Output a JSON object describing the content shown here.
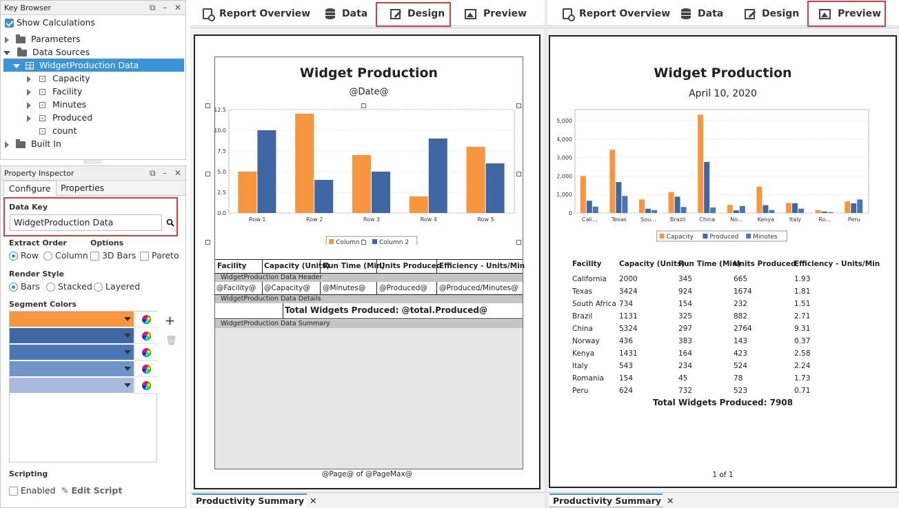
{
  "key_browser": {
    "title": "Key Browser",
    "show_calculations": "Show Calculations",
    "tree": {
      "parameters": "Parameters",
      "data_sources": "Data Sources",
      "widget_data": "WidgetProduction Data",
      "fields": [
        "Capacity",
        "Facility",
        "Minutes",
        "Produced",
        "count"
      ],
      "built_in": "Built In"
    }
  },
  "property_inspector": {
    "title": "Property Inspector",
    "tabs": [
      "Configure",
      "Properties"
    ],
    "data_key_label": "Data Key",
    "data_key_value": "WidgetProduction Data",
    "extract_order_label": "Extract Order",
    "options_label": "Options",
    "extract_row": "Row",
    "extract_column": "Column",
    "opt_3d": "3D Bars",
    "opt_pareto": "Pareto",
    "render_style_label": "Render Style",
    "render_bars": "Bars",
    "render_stacked": "Stacked",
    "render_layered": "Layered",
    "segment_colors_label": "Segment Colors",
    "segment_colors": [
      "#f7963f",
      "#3f67a3",
      "#4a76b5",
      "#7094c8",
      "#a8bbdc"
    ],
    "scripting_label": "Scripting",
    "enabled": "Enabled",
    "edit_script": "Edit Script"
  },
  "left_tabs": {
    "report_overview": "Report Overview",
    "data": "Data",
    "design": "Design",
    "preview": "Preview",
    "bottom_tab": "Productivity Summary"
  },
  "right_tabs": {
    "report_overview": "Report Overview",
    "data": "Data",
    "design": "Design",
    "preview": "Preview",
    "bottom_tab": "Productivity Summary"
  },
  "design": {
    "title": "Widget Production",
    "date_key": "@Date@",
    "columns": [
      "Facility",
      "Capacity (Units)",
      "Run Time (Min)",
      "Units Produced",
      "Efficiency - Units/Min"
    ],
    "header_band": "WidgetProduction Data Header",
    "detail_keys": [
      "@Facility@",
      "@Capacity@",
      "@Minutes@",
      "@Produced@",
      "@Produced/Minutes@"
    ],
    "details_band": "WidgetProduction Data Details",
    "total": "Total Widgets Produced: @total.Produced@",
    "summary_band": "WidgetProduction Data Summary",
    "footer": "@Page@ of @PageMax@"
  },
  "preview": {
    "title": "Widget Production",
    "date": "April 10, 2020",
    "columns": [
      "Facility",
      "Capacity (Units)",
      "Run Time (Min)",
      "Units Produced",
      "Efficiency - Units/Min"
    ],
    "rows": [
      [
        "California",
        "2000",
        "345",
        "665",
        "1.93"
      ],
      [
        "Texas",
        "3424",
        "924",
        "1674",
        "1.81"
      ],
      [
        "South Africa",
        "734",
        "154",
        "232",
        "1.51"
      ],
      [
        "Brazil",
        "1131",
        "325",
        "882",
        "2.71"
      ],
      [
        "China",
        "5324",
        "297",
        "2764",
        "9.31"
      ],
      [
        "Norway",
        "436",
        "383",
        "143",
        "0.37"
      ],
      [
        "Kenya",
        "1431",
        "164",
        "423",
        "2.58"
      ],
      [
        "Italy",
        "543",
        "234",
        "524",
        "2.24"
      ],
      [
        "Romania",
        "154",
        "45",
        "78",
        "1.73"
      ],
      [
        "Peru",
        "624",
        "732",
        "523",
        "0.71"
      ]
    ],
    "total": "Total Widgets Produced: 7908",
    "footer": "1 of 1"
  },
  "chart_data": [
    {
      "type": "bar",
      "categories": [
        "Row 1",
        "Row 2",
        "Row 3",
        "Row 4",
        "Row 5"
      ],
      "series": [
        {
          "name": "Column 1",
          "values": [
            5,
            12,
            7,
            2,
            8
          ],
          "color": "#f7963f"
        },
        {
          "name": "Column 2",
          "values": [
            10,
            4,
            5,
            9,
            6
          ],
          "color": "#3f67a3"
        }
      ],
      "yticks": [
        "0.0",
        "2.5",
        "5.0",
        "7.5",
        "10.0",
        "12.5"
      ],
      "ylim": [
        0,
        12.5
      ],
      "legend": "bottom",
      "grid": true
    },
    {
      "type": "bar",
      "categories": [
        "Cali...",
        "Texas",
        "Sou...",
        "Brazil",
        "China",
        "No...",
        "Kenya",
        "Italy",
        "Ro...",
        "Peru"
      ],
      "series": [
        {
          "name": "Capacity",
          "values": [
            2000,
            3424,
            734,
            1131,
            5324,
            436,
            1431,
            543,
            154,
            624
          ],
          "color": "#f7963f"
        },
        {
          "name": "Produced",
          "values": [
            665,
            1674,
            232,
            882,
            2764,
            143,
            423,
            524,
            78,
            523
          ],
          "color": "#3f67a3"
        },
        {
          "name": "Minutes",
          "values": [
            345,
            924,
            154,
            325,
            297,
            383,
            164,
            234,
            45,
            732
          ],
          "color": "#4a76b5"
        }
      ],
      "yticks": [
        "0",
        "1,000",
        "2,000",
        "3,000",
        "4,000",
        "5,000"
      ],
      "ylim": [
        0,
        5600
      ],
      "legend": "bottom",
      "grid": true
    }
  ]
}
